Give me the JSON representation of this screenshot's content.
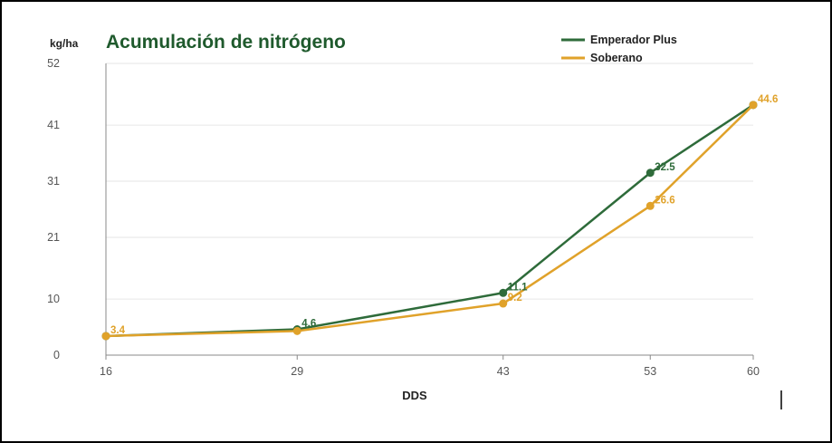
{
  "chart_data": {
    "type": "line",
    "title": "Acumulación de nitrógeno",
    "ylabel": "kg/ha",
    "xlabel": "DDS",
    "categories": [
      "16",
      "29",
      "43",
      "53",
      "60"
    ],
    "yticks": [
      "0",
      "10",
      "21",
      "31",
      "41",
      "52"
    ],
    "ylim": [
      0,
      52
    ],
    "grid": true,
    "legend_position": "top-right",
    "series": [
      {
        "name": "Emperador Plus",
        "color": "#2e6b3a",
        "values": [
          3.4,
          4.6,
          11.1,
          32.5,
          44.6
        ],
        "labels": [
          "",
          "4.6",
          "11.1",
          "32.5",
          ""
        ]
      },
      {
        "name": "Soberano",
        "color": "#e0a22a",
        "values": [
          3.4,
          4.3,
          9.2,
          26.6,
          44.6
        ],
        "labels": [
          "3.4",
          "",
          "9.2",
          "26.6",
          "44.6"
        ]
      }
    ]
  }
}
